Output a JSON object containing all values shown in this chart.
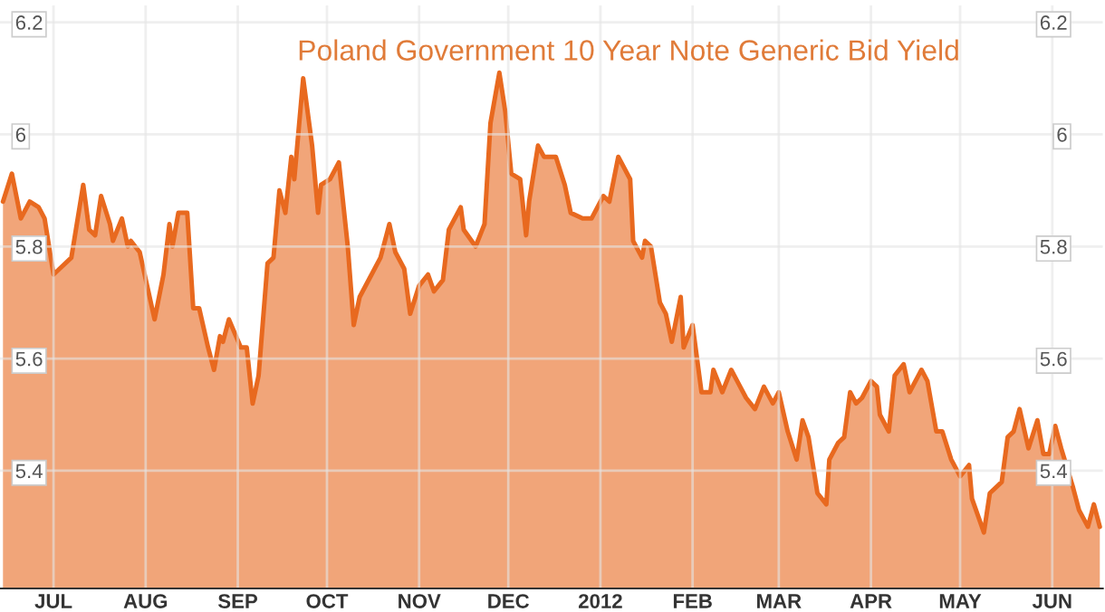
{
  "chart_data": {
    "type": "area",
    "title": "Poland Government 10 Year Note Generic Bid Yield",
    "x": [
      "2011-06-14",
      "2011-06-17",
      "2011-06-20",
      "2011-06-23",
      "2011-06-26",
      "2011-06-28",
      "2011-07-01",
      "2011-07-03",
      "2011-07-07",
      "2011-07-11",
      "2011-07-13",
      "2011-07-15",
      "2011-07-17",
      "2011-07-20",
      "2011-07-21",
      "2011-07-24",
      "2011-07-26",
      "2011-07-27",
      "2011-07-30",
      "2011-08-04",
      "2011-08-07",
      "2011-08-09",
      "2011-08-10",
      "2011-08-12",
      "2011-08-15",
      "2011-08-17",
      "2011-08-19",
      "2011-08-22",
      "2011-08-24",
      "2011-08-26",
      "2011-08-27",
      "2011-08-29",
      "2011-09-02",
      "2011-09-04",
      "2011-09-06",
      "2011-09-08",
      "2011-09-11",
      "2011-09-13",
      "2011-09-15",
      "2011-09-17",
      "2011-09-19",
      "2011-09-20",
      "2011-09-23",
      "2011-09-26",
      "2011-09-28",
      "2011-09-29",
      "2011-10-02",
      "2011-10-05",
      "2011-10-08",
      "2011-10-10",
      "2011-10-12",
      "2011-10-16",
      "2011-10-19",
      "2011-10-22",
      "2011-10-24",
      "2011-10-27",
      "2011-10-29",
      "2011-11-01",
      "2011-11-04",
      "2011-11-06",
      "2011-11-09",
      "2011-11-11",
      "2011-11-15",
      "2011-11-16",
      "2011-11-20",
      "2011-11-23",
      "2011-11-25",
      "2011-11-28",
      "2011-11-30",
      "2011-12-02",
      "2011-12-05",
      "2011-12-07",
      "2011-12-08",
      "2011-12-11",
      "2011-12-13",
      "2011-12-17",
      "2011-12-20",
      "2011-12-22",
      "2011-12-26",
      "2011-12-29",
      "2012-01-02",
      "2012-01-04",
      "2012-01-07",
      "2012-01-11",
      "2012-01-12",
      "2012-01-15",
      "2012-01-16",
      "2012-01-18",
      "2012-01-21",
      "2012-01-23",
      "2012-01-25",
      "2012-01-28",
      "2012-01-29",
      "2012-02-01",
      "2012-02-04",
      "2012-02-07",
      "2012-02-08",
      "2012-02-11",
      "2012-02-14",
      "2012-02-16",
      "2012-02-19",
      "2012-02-22",
      "2012-02-25",
      "2012-02-28",
      "2012-03-01",
      "2012-03-04",
      "2012-03-07",
      "2012-03-09",
      "2012-03-11",
      "2012-03-14",
      "2012-03-17",
      "2012-03-18",
      "2012-03-21",
      "2012-03-23",
      "2012-03-25",
      "2012-03-27",
      "2012-03-29",
      "2012-04-01",
      "2012-04-03",
      "2012-04-04",
      "2012-04-07",
      "2012-04-09",
      "2012-04-12",
      "2012-04-14",
      "2012-04-17",
      "2012-04-18",
      "2012-04-20",
      "2012-04-23",
      "2012-04-25",
      "2012-04-28",
      "2012-05-01",
      "2012-05-04",
      "2012-05-05",
      "2012-05-09",
      "2012-05-11",
      "2012-05-15",
      "2012-05-17",
      "2012-05-19",
      "2012-05-21",
      "2012-05-24",
      "2012-05-27",
      "2012-05-29",
      "2012-05-31",
      "2012-06-02",
      "2012-06-04",
      "2012-06-08",
      "2012-06-10",
      "2012-06-13",
      "2012-06-15",
      "2012-06-17"
    ],
    "series": [
      {
        "color": "#e8691f",
        "values": [
          5.88,
          5.93,
          5.85,
          5.88,
          5.87,
          5.85,
          5.75,
          5.76,
          5.78,
          5.91,
          5.83,
          5.82,
          5.89,
          5.84,
          5.81,
          5.85,
          5.8,
          5.81,
          5.79,
          5.67,
          5.75,
          5.84,
          5.8,
          5.86,
          5.86,
          5.69,
          5.69,
          5.62,
          5.58,
          5.64,
          5.63,
          5.67,
          5.62,
          5.62,
          5.52,
          5.57,
          5.77,
          5.78,
          5.9,
          5.86,
          5.96,
          5.92,
          6.1,
          5.98,
          5.86,
          5.91,
          5.92,
          5.95,
          5.8,
          5.66,
          5.71,
          5.75,
          5.78,
          5.84,
          5.79,
          5.76,
          5.68,
          5.73,
          5.75,
          5.72,
          5.74,
          5.83,
          5.87,
          5.83,
          5.8,
          5.84,
          6.02,
          6.11,
          6.04,
          5.93,
          5.92,
          5.82,
          5.88,
          5.98,
          5.96,
          5.96,
          5.91,
          5.86,
          5.85,
          5.85,
          5.89,
          5.88,
          5.96,
          5.92,
          5.81,
          5.78,
          5.81,
          5.8,
          5.7,
          5.68,
          5.63,
          5.71,
          5.62,
          5.66,
          5.54,
          5.54,
          5.58,
          5.54,
          5.58,
          5.56,
          5.53,
          5.51,
          5.55,
          5.52,
          5.54,
          5.47,
          5.42,
          5.49,
          5.46,
          5.36,
          5.34,
          5.42,
          5.45,
          5.46,
          5.54,
          5.52,
          5.53,
          5.56,
          5.55,
          5.5,
          5.47,
          5.57,
          5.59,
          5.54,
          5.57,
          5.58,
          5.56,
          5.47,
          5.47,
          5.42,
          5.39,
          5.41,
          5.35,
          5.29,
          5.36,
          5.38,
          5.46,
          5.47,
          5.51,
          5.44,
          5.49,
          5.43,
          5.43,
          5.48,
          5.44,
          5.37,
          5.33,
          5.3,
          5.34,
          5.3
        ]
      }
    ],
    "xlim": [
      "2011-06-13",
      "2012-06-18"
    ],
    "xticks": [
      {
        "value": "2011-07-01",
        "label": "JUL"
      },
      {
        "value": "2011-08-01",
        "label": "AUG"
      },
      {
        "value": "2011-09-01",
        "label": "SEP"
      },
      {
        "value": "2011-10-01",
        "label": "OCT"
      },
      {
        "value": "2011-11-01",
        "label": "NOV"
      },
      {
        "value": "2011-12-01",
        "label": "DEC"
      },
      {
        "value": "2012-01-01",
        "label": "2012"
      },
      {
        "value": "2012-02-01",
        "label": "FEB"
      },
      {
        "value": "2012-03-01",
        "label": "MAR"
      },
      {
        "value": "2012-04-01",
        "label": "APR"
      },
      {
        "value": "2012-05-01",
        "label": "MAY"
      },
      {
        "value": "2012-06-01",
        "label": "JUN"
      }
    ],
    "ylim": [
      5.19,
      6.23
    ],
    "yticks": [
      5.4,
      5.6,
      5.8,
      6,
      6.2
    ],
    "y2lim": [
      5.19,
      6.23
    ],
    "y2ticks": [
      5.4,
      5.6,
      5.8,
      6,
      6.2
    ],
    "grid": true,
    "legend": false
  }
}
